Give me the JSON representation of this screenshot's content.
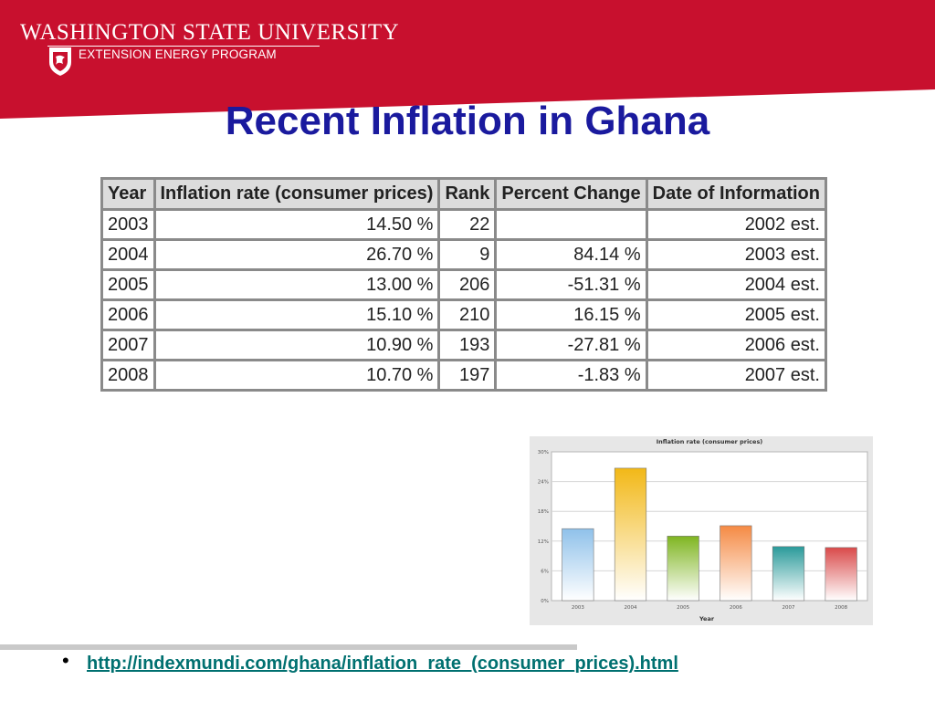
{
  "header": {
    "university": "WASHINGTON STATE UNIVERSITY",
    "program": "EXTENSION ENERGY PROGRAM",
    "banner_color": "#c8102e"
  },
  "slide": {
    "title": "Recent Inflation in Ghana",
    "title_color": "#1a1a9e"
  },
  "table": {
    "headers": [
      "Year",
      "Inflation rate (consumer prices)",
      "Rank",
      "Percent Change",
      "Date of Information"
    ],
    "rows": [
      [
        "2003",
        "14.50 %",
        "22",
        "",
        "2002 est."
      ],
      [
        "2004",
        "26.70 %",
        "9",
        "84.14 %",
        "2003 est."
      ],
      [
        "2005",
        "13.00 %",
        "206",
        "-51.31 %",
        "2004 est."
      ],
      [
        "2006",
        "15.10 %",
        "210",
        "16.15 %",
        "2005 est."
      ],
      [
        "2007",
        "10.90 %",
        "193",
        "-27.81 %",
        "2006 est."
      ],
      [
        "2008",
        "10.70 %",
        "197",
        "-1.83 %",
        "2007 est."
      ]
    ]
  },
  "chart_data": {
    "type": "bar",
    "title": "Inflation rate (consumer prices)",
    "xlabel": "Year",
    "ylabel": "",
    "categories": [
      "2003",
      "2004",
      "2005",
      "2006",
      "2007",
      "2008"
    ],
    "values": [
      14.5,
      26.7,
      13.0,
      15.1,
      10.9,
      10.7
    ],
    "ylim": [
      0,
      30
    ],
    "yticks": [
      "0%",
      "6%",
      "12%",
      "18%",
      "24%",
      "30%"
    ],
    "grid": true,
    "colors": [
      "#8fc1ea",
      "#f2b817",
      "#7fb521",
      "#f58a44",
      "#2a9a9a",
      "#d94a4a"
    ]
  },
  "footer": {
    "bullet": "•",
    "link": "http://indexmundi.com/ghana/inflation_rate_(consumer_prices).html"
  }
}
